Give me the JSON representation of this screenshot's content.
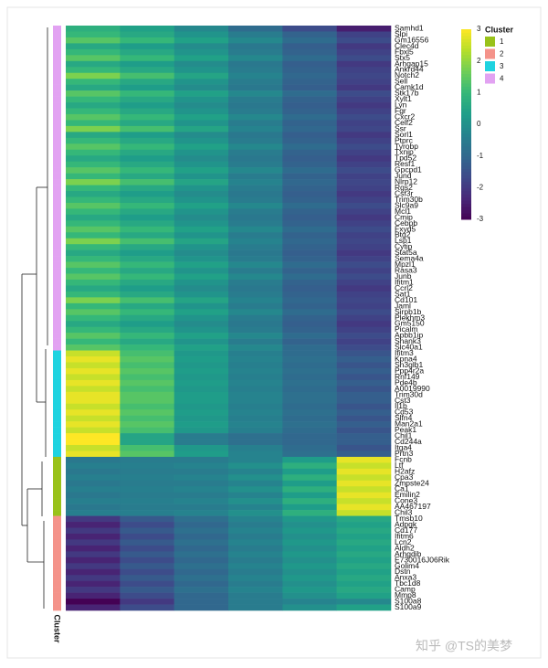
{
  "chart_data": {
    "type": "heatmap",
    "colorscale": [
      "#440154",
      "#482878",
      "#3e4989",
      "#31688e",
      "#26828e",
      "#1f9e89",
      "#35b779",
      "#6ece58",
      "#b5de2b",
      "#fde725"
    ],
    "clim": [
      -3,
      3
    ],
    "cticks": [
      -3,
      -2,
      -1,
      0,
      1,
      2,
      3
    ],
    "legend_title": "Cluster",
    "annotation_label": "Cluster",
    "clusters": [
      {
        "name": "1",
        "color": "#99c21a"
      },
      {
        "name": "2",
        "color": "#f4938a"
      },
      {
        "name": "3",
        "color": "#1fd3e0"
      },
      {
        "name": "4",
        "color": "#e2a2f2"
      }
    ],
    "rows": [
      {
        "gene": "Samhd1",
        "cluster": "4",
        "values": [
          0.8,
          0.4,
          -0.2,
          -0.9,
          -1.6,
          -2.5
        ]
      },
      {
        "gene": "Slpi",
        "cluster": "4",
        "values": [
          1.0,
          0.6,
          0.1,
          -0.5,
          -1.1,
          -1.8
        ]
      },
      {
        "gene": "Gm16556",
        "cluster": "4",
        "values": [
          1.4,
          1.0,
          0.4,
          -0.2,
          -0.9,
          -1.6
        ]
      },
      {
        "gene": "Clec4d",
        "cluster": "4",
        "values": [
          0.6,
          0.3,
          -0.1,
          -0.6,
          -1.2,
          -2.0
        ]
      },
      {
        "gene": "Fbxl5",
        "cluster": "4",
        "values": [
          1.0,
          0.6,
          0.1,
          -0.5,
          -1.1,
          -1.8
        ]
      },
      {
        "gene": "Stx5",
        "cluster": "4",
        "values": [
          1.4,
          1.0,
          0.4,
          -0.2,
          -0.9,
          -1.6
        ]
      },
      {
        "gene": "Arhgap15",
        "cluster": "4",
        "values": [
          0.6,
          0.3,
          -0.1,
          -0.6,
          -1.2,
          -2.0
        ]
      },
      {
        "gene": "Ankrd44",
        "cluster": "4",
        "values": [
          1.0,
          0.6,
          0.1,
          -0.5,
          -1.1,
          -1.8
        ]
      },
      {
        "gene": "Notch2",
        "cluster": "4",
        "values": [
          1.8,
          1.2,
          0.5,
          -0.3,
          -1.0,
          -1.7
        ]
      },
      {
        "gene": "Sell",
        "cluster": "4",
        "values": [
          1.0,
          0.6,
          0.1,
          -0.5,
          -1.1,
          -1.8
        ]
      },
      {
        "gene": "Camk1d",
        "cluster": "4",
        "values": [
          0.6,
          0.3,
          -0.1,
          -0.6,
          -1.2,
          -2.0
        ]
      },
      {
        "gene": "Stk17b",
        "cluster": "4",
        "values": [
          1.4,
          1.0,
          0.4,
          -0.2,
          -0.9,
          -1.6
        ]
      },
      {
        "gene": "Xylt1",
        "cluster": "4",
        "values": [
          1.0,
          0.6,
          0.1,
          -0.5,
          -1.1,
          -1.8
        ]
      },
      {
        "gene": "Lyn",
        "cluster": "4",
        "values": [
          0.6,
          0.3,
          -0.1,
          -0.6,
          -1.2,
          -2.0
        ]
      },
      {
        "gene": "Fgr",
        "cluster": "4",
        "values": [
          1.0,
          0.6,
          0.1,
          -0.5,
          -1.1,
          -1.8
        ]
      },
      {
        "gene": "Cxcr2",
        "cluster": "4",
        "values": [
          1.4,
          1.0,
          0.4,
          -0.2,
          -0.9,
          -1.6
        ]
      },
      {
        "gene": "Celf2",
        "cluster": "4",
        "values": [
          1.0,
          0.6,
          0.1,
          -0.5,
          -1.1,
          -1.8
        ]
      },
      {
        "gene": "Ssr",
        "cluster": "4",
        "values": [
          1.8,
          1.2,
          0.5,
          -0.3,
          -1.0,
          -1.7
        ]
      },
      {
        "gene": "Sorl1",
        "cluster": "4",
        "values": [
          0.6,
          0.3,
          -0.1,
          -0.6,
          -1.2,
          -2.0
        ]
      },
      {
        "gene": "Ptprc",
        "cluster": "4",
        "values": [
          1.0,
          0.6,
          0.1,
          -0.5,
          -1.1,
          -1.8
        ]
      },
      {
        "gene": "Tyrobp",
        "cluster": "4",
        "values": [
          1.4,
          1.0,
          0.4,
          -0.2,
          -0.9,
          -1.6
        ]
      },
      {
        "gene": "Txnip",
        "cluster": "4",
        "values": [
          1.0,
          0.6,
          0.1,
          -0.5,
          -1.1,
          -1.8
        ]
      },
      {
        "gene": "Tpd52",
        "cluster": "4",
        "values": [
          0.6,
          0.3,
          -0.1,
          -0.6,
          -1.2,
          -2.0
        ]
      },
      {
        "gene": "Resf1",
        "cluster": "4",
        "values": [
          1.0,
          0.6,
          0.1,
          -0.5,
          -1.1,
          -1.8
        ]
      },
      {
        "gene": "Gpcpd1",
        "cluster": "4",
        "values": [
          1.4,
          1.0,
          0.4,
          -0.2,
          -0.9,
          -1.6
        ]
      },
      {
        "gene": "Jund",
        "cluster": "4",
        "values": [
          1.0,
          0.6,
          0.1,
          -0.5,
          -1.1,
          -1.8
        ]
      },
      {
        "gene": "Nlrp12",
        "cluster": "4",
        "values": [
          1.8,
          1.2,
          0.5,
          -0.3,
          -1.0,
          -1.7
        ]
      },
      {
        "gene": "Rgs2",
        "cluster": "4",
        "values": [
          1.0,
          0.6,
          0.1,
          -0.5,
          -1.1,
          -1.8
        ]
      },
      {
        "gene": "Csf3r",
        "cluster": "4",
        "values": [
          0.6,
          0.3,
          -0.1,
          -0.6,
          -1.2,
          -2.0
        ]
      },
      {
        "gene": "Trim30b",
        "cluster": "4",
        "values": [
          1.0,
          0.6,
          0.1,
          -0.5,
          -1.1,
          -1.8
        ]
      },
      {
        "gene": "Slc9a9",
        "cluster": "4",
        "values": [
          1.4,
          1.0,
          0.4,
          -0.2,
          -0.9,
          -1.6
        ]
      },
      {
        "gene": "Mcl1",
        "cluster": "4",
        "values": [
          1.0,
          0.6,
          0.1,
          -0.5,
          -1.1,
          -1.8
        ]
      },
      {
        "gene": "Cmip",
        "cluster": "4",
        "values": [
          0.6,
          0.3,
          -0.1,
          -0.6,
          -1.2,
          -2.0
        ]
      },
      {
        "gene": "Cebpb",
        "cluster": "4",
        "values": [
          1.0,
          0.6,
          0.1,
          -0.5,
          -1.1,
          -1.8
        ]
      },
      {
        "gene": "Fxyd5",
        "cluster": "4",
        "values": [
          1.4,
          1.0,
          0.4,
          -0.2,
          -0.9,
          -1.6
        ]
      },
      {
        "gene": "Btg2",
        "cluster": "4",
        "values": [
          1.0,
          0.6,
          0.1,
          -0.5,
          -1.1,
          -1.8
        ]
      },
      {
        "gene": "Lsp1",
        "cluster": "4",
        "values": [
          1.8,
          1.2,
          0.5,
          -0.3,
          -1.0,
          -1.7
        ]
      },
      {
        "gene": "Cytip",
        "cluster": "4",
        "values": [
          1.0,
          0.6,
          0.1,
          -0.5,
          -1.1,
          -1.8
        ]
      },
      {
        "gene": "Stat5a",
        "cluster": "4",
        "values": [
          0.6,
          0.3,
          -0.1,
          -0.6,
          -1.2,
          -2.0
        ]
      },
      {
        "gene": "Sema4a",
        "cluster": "4",
        "values": [
          1.0,
          0.6,
          0.1,
          -0.5,
          -1.1,
          -1.8
        ]
      },
      {
        "gene": "Mpzl1",
        "cluster": "4",
        "values": [
          1.4,
          1.0,
          0.4,
          -0.2,
          -0.9,
          -1.6
        ]
      },
      {
        "gene": "Rasa3",
        "cluster": "4",
        "values": [
          1.0,
          0.6,
          0.1,
          -0.5,
          -1.1,
          -1.8
        ]
      },
      {
        "gene": "Junb",
        "cluster": "4",
        "values": [
          1.4,
          1.0,
          0.4,
          -0.2,
          -0.9,
          -1.6
        ]
      },
      {
        "gene": "Ifitm1",
        "cluster": "4",
        "values": [
          1.0,
          0.6,
          0.1,
          -0.5,
          -1.1,
          -1.8
        ]
      },
      {
        "gene": "Ccrl2",
        "cluster": "4",
        "values": [
          0.6,
          0.3,
          -0.1,
          -0.6,
          -1.2,
          -2.0
        ]
      },
      {
        "gene": "Sat1",
        "cluster": "4",
        "values": [
          1.0,
          0.6,
          0.1,
          -0.5,
          -1.1,
          -1.8
        ]
      },
      {
        "gene": "Cd101",
        "cluster": "4",
        "values": [
          1.8,
          1.2,
          0.5,
          -0.3,
          -1.0,
          -1.7
        ]
      },
      {
        "gene": "Jaml",
        "cluster": "4",
        "values": [
          1.0,
          0.6,
          0.1,
          -0.5,
          -1.1,
          -1.8
        ]
      },
      {
        "gene": "Sirpb1b",
        "cluster": "4",
        "values": [
          1.4,
          1.0,
          0.4,
          -0.2,
          -0.9,
          -1.6
        ]
      },
      {
        "gene": "Plekhm3",
        "cluster": "4",
        "values": [
          1.0,
          0.6,
          0.1,
          -0.5,
          -1.1,
          -1.8
        ]
      },
      {
        "gene": "Gm5150",
        "cluster": "4",
        "values": [
          0.6,
          0.3,
          -0.1,
          -0.6,
          -1.2,
          -2.0
        ]
      },
      {
        "gene": "Picalm",
        "cluster": "4",
        "values": [
          1.0,
          0.6,
          0.1,
          -0.5,
          -1.1,
          -1.8
        ]
      },
      {
        "gene": "Apbb1ip",
        "cluster": "4",
        "values": [
          1.4,
          1.0,
          0.4,
          -0.2,
          -0.9,
          -1.6
        ]
      },
      {
        "gene": "Shank3",
        "cluster": "4",
        "values": [
          1.0,
          0.6,
          0.1,
          -0.5,
          -1.1,
          -1.8
        ]
      },
      {
        "gene": "Slc40a1",
        "cluster": "4",
        "values": [
          1.4,
          1.0,
          0.4,
          -0.2,
          -0.9,
          -1.6
        ]
      },
      {
        "gene": "Ifitm3",
        "cluster": "3",
        "values": [
          2.5,
          1.2,
          0.2,
          -0.4,
          -0.9,
          -1.4
        ]
      },
      {
        "gene": "Kpna4",
        "cluster": "3",
        "values": [
          2.8,
          1.4,
          0.3,
          -0.3,
          -0.8,
          -1.2
        ]
      },
      {
        "gene": "Sh3glb1",
        "cluster": "3",
        "values": [
          2.5,
          1.2,
          0.2,
          -0.4,
          -0.9,
          -1.4
        ]
      },
      {
        "gene": "Ppp4r2a",
        "cluster": "3",
        "values": [
          2.8,
          1.4,
          0.3,
          -0.3,
          -0.8,
          -1.2
        ]
      },
      {
        "gene": "Rnf149",
        "cluster": "3",
        "values": [
          2.5,
          1.2,
          0.2,
          -0.4,
          -0.9,
          -1.4
        ]
      },
      {
        "gene": "Pde4b",
        "cluster": "3",
        "values": [
          2.8,
          1.4,
          0.3,
          -0.3,
          -0.8,
          -1.2
        ]
      },
      {
        "gene": "A0019990",
        "cluster": "3",
        "values": [
          2.5,
          1.2,
          0.2,
          -0.4,
          -0.9,
          -1.4
        ]
      },
      {
        "gene": "Trim30d",
        "cluster": "3",
        "values": [
          2.8,
          1.4,
          0.3,
          -0.3,
          -0.8,
          -1.2
        ]
      },
      {
        "gene": "Cst3",
        "cluster": "3",
        "values": [
          2.8,
          1.4,
          0.3,
          -0.3,
          -0.8,
          -1.2
        ]
      },
      {
        "gene": "Il1b",
        "cluster": "3",
        "values": [
          2.5,
          1.2,
          0.2,
          -0.4,
          -0.9,
          -1.4
        ]
      },
      {
        "gene": "Cd53",
        "cluster": "3",
        "values": [
          2.8,
          1.4,
          0.3,
          -0.3,
          -0.8,
          -1.2
        ]
      },
      {
        "gene": "Slfn4",
        "cluster": "3",
        "values": [
          2.5,
          1.2,
          0.2,
          -0.4,
          -0.9,
          -1.4
        ]
      },
      {
        "gene": "Man2a1",
        "cluster": "3",
        "values": [
          2.8,
          1.4,
          0.3,
          -0.3,
          -0.8,
          -1.2
        ]
      },
      {
        "gene": "Peak1",
        "cluster": "3",
        "values": [
          2.5,
          1.2,
          0.2,
          -0.4,
          -0.9,
          -1.4
        ]
      },
      {
        "gene": "Chil1",
        "cluster": "3",
        "values": [
          3.0,
          0.5,
          -0.5,
          -0.8,
          -1.0,
          -1.2
        ]
      },
      {
        "gene": "Cd244a",
        "cluster": "3",
        "values": [
          3.0,
          0.5,
          -0.5,
          -0.8,
          -1.0,
          -1.2
        ]
      },
      {
        "gene": "Itga4",
        "cluster": "3",
        "values": [
          2.5,
          1.2,
          0.2,
          -0.4,
          -0.9,
          -1.4
        ]
      },
      {
        "gene": "Prtn3",
        "cluster": "3",
        "values": [
          2.8,
          1.4,
          0.3,
          -0.3,
          -0.8,
          -1.2
        ]
      },
      {
        "gene": "Fcnb",
        "cluster": "1",
        "values": [
          -0.6,
          -0.5,
          -0.5,
          -0.3,
          0.3,
          2.8
        ]
      },
      {
        "gene": "Ltf",
        "cluster": "1",
        "values": [
          -0.4,
          -0.4,
          -0.3,
          0.0,
          0.8,
          2.5
        ]
      },
      {
        "gene": "H2afz",
        "cluster": "1",
        "values": [
          -0.6,
          -0.5,
          -0.5,
          -0.3,
          0.3,
          2.8
        ]
      },
      {
        "gene": "Cpa3",
        "cluster": "1",
        "values": [
          -0.4,
          -0.4,
          -0.3,
          0.0,
          0.8,
          2.5
        ]
      },
      {
        "gene": "Zmpste24",
        "cluster": "1",
        "values": [
          -0.6,
          -0.5,
          -0.5,
          -0.3,
          0.3,
          2.8
        ]
      },
      {
        "gene": "Ca1",
        "cluster": "1",
        "values": [
          -0.4,
          -0.4,
          -0.3,
          0.0,
          0.8,
          2.5
        ]
      },
      {
        "gene": "Emilin2",
        "cluster": "1",
        "values": [
          -0.6,
          -0.5,
          -0.5,
          -0.3,
          0.3,
          2.8
        ]
      },
      {
        "gene": "Cone3",
        "cluster": "1",
        "values": [
          -0.4,
          -0.4,
          -0.3,
          0.0,
          0.8,
          2.5
        ]
      },
      {
        "gene": "AA467197",
        "cluster": "1",
        "values": [
          -0.6,
          -0.5,
          -0.5,
          -0.3,
          0.3,
          2.8
        ]
      },
      {
        "gene": "Chil3",
        "cluster": "1",
        "values": [
          -0.4,
          -0.4,
          -0.3,
          0.0,
          0.8,
          2.5
        ]
      },
      {
        "gene": "Tmsb10",
        "cluster": "2",
        "values": [
          -2.0,
          -1.3,
          -0.8,
          -0.3,
          0.2,
          0.6
        ]
      },
      {
        "gene": "Adpgk",
        "cluster": "2",
        "values": [
          -2.4,
          -1.6,
          -1.0,
          -0.5,
          0.0,
          0.4
        ]
      },
      {
        "gene": "Cd177",
        "cluster": "2",
        "values": [
          -2.0,
          -1.3,
          -0.8,
          -0.3,
          0.2,
          0.6
        ]
      },
      {
        "gene": "Ifitm6",
        "cluster": "2",
        "values": [
          -2.4,
          -1.6,
          -1.0,
          -0.5,
          0.0,
          0.4
        ]
      },
      {
        "gene": "Lcn2",
        "cluster": "2",
        "values": [
          -2.0,
          -1.3,
          -0.8,
          -0.3,
          0.2,
          0.6
        ]
      },
      {
        "gene": "Aldh2",
        "cluster": "2",
        "values": [
          -2.4,
          -1.6,
          -1.0,
          -0.5,
          0.0,
          0.4
        ]
      },
      {
        "gene": "Arhgdib",
        "cluster": "2",
        "values": [
          -2.0,
          -1.3,
          -0.8,
          -0.3,
          0.2,
          0.6
        ]
      },
      {
        "gene": "E730016J06Rik",
        "cluster": "2",
        "values": [
          -2.4,
          -1.6,
          -1.0,
          -0.5,
          0.0,
          0.4
        ]
      },
      {
        "gene": "Golim4",
        "cluster": "2",
        "values": [
          -2.0,
          -1.3,
          -0.8,
          -0.3,
          0.2,
          0.6
        ]
      },
      {
        "gene": "Dstn",
        "cluster": "2",
        "values": [
          -2.4,
          -1.6,
          -1.0,
          -0.5,
          0.0,
          0.4
        ]
      },
      {
        "gene": "Anxa3",
        "cluster": "2",
        "values": [
          -2.0,
          -1.3,
          -0.8,
          -0.3,
          0.2,
          0.6
        ]
      },
      {
        "gene": "Tbc1d8",
        "cluster": "2",
        "values": [
          -2.4,
          -1.6,
          -1.0,
          -0.5,
          0.0,
          0.4
        ]
      },
      {
        "gene": "Camp",
        "cluster": "2",
        "values": [
          -2.0,
          -1.3,
          -0.8,
          -0.3,
          0.2,
          0.6
        ]
      },
      {
        "gene": "Mmp8",
        "cluster": "2",
        "values": [
          -2.4,
          -1.6,
          -1.0,
          -0.5,
          0.0,
          0.4
        ]
      },
      {
        "gene": "S100a8",
        "cluster": "2",
        "values": [
          -3.0,
          -2.0,
          -1.0,
          -0.5,
          -0.3,
          -0.2
        ]
      },
      {
        "gene": "S100a9",
        "cluster": "2",
        "values": [
          -2.4,
          -1.6,
          -1.0,
          -0.5,
          0.0,
          0.4
        ]
      }
    ]
  },
  "watermark": "知乎 @TS的美梦"
}
